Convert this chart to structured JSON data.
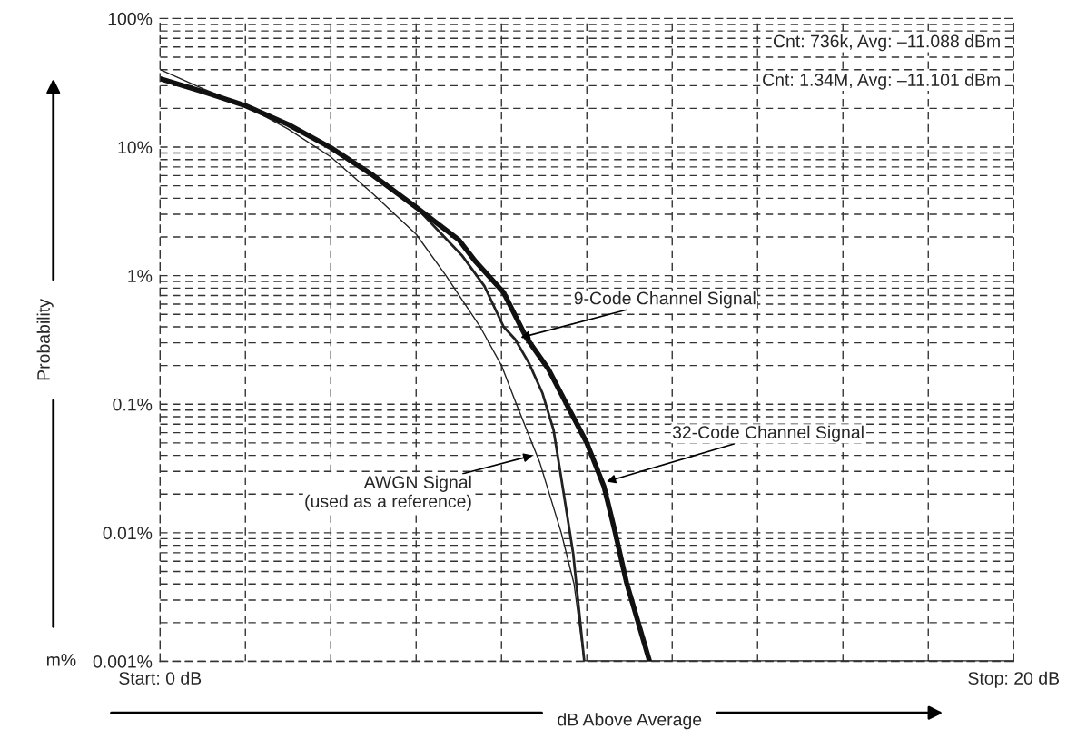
{
  "chart_data": {
    "type": "line",
    "xlabel": "dB Above Average",
    "ylabel": "Probability",
    "xlim": [
      0,
      20
    ],
    "xticks": [
      {
        "value": 0,
        "label": "Start: 0 dB"
      },
      {
        "value": 2,
        "label": null
      },
      {
        "value": 4,
        "label": null
      },
      {
        "value": 6,
        "label": null
      },
      {
        "value": 8,
        "label": null
      },
      {
        "value": 10,
        "label": null
      },
      {
        "value": 12,
        "label": null
      },
      {
        "value": 14,
        "label": null
      },
      {
        "value": 16,
        "label": null
      },
      {
        "value": 18,
        "label": null
      },
      {
        "value": 20,
        "label": "Stop: 20 dB"
      }
    ],
    "log": "y",
    "ylim": [
      0.001,
      100
    ],
    "yticks": [
      {
        "value": 0.001,
        "label": "0.001%"
      },
      {
        "value": 0.01,
        "label": "0.01%"
      },
      {
        "value": 0.1,
        "label": "0.1%"
      },
      {
        "value": 1,
        "label": "1%"
      },
      {
        "value": 10,
        "label": "10%"
      },
      {
        "value": 100,
        "label": "100%"
      }
    ],
    "grid": true,
    "line_style": "solid",
    "marker": "none",
    "series": [
      {
        "color": "#222222",
        "x": [
          0,
          1,
          2,
          3,
          4,
          5,
          6,
          6.7,
          7.5,
          8,
          8.35,
          8.9,
          9.4,
          9.7,
          9.94
        ],
        "values": [
          40,
          28.5,
          21,
          13.8,
          8.4,
          4.3,
          2.1,
          1.0,
          0.4,
          0.2,
          0.1,
          0.035,
          0.01,
          0.004,
          0.001
        ]
      },
      {
        "color": "#222222",
        "x": [
          0,
          1,
          2,
          3,
          4,
          5,
          6,
          7.07,
          7.6,
          8.05,
          8.32,
          8.64,
          8.96,
          9.22,
          9.45,
          9.68,
          9.94,
          20
        ],
        "values": [
          34,
          27,
          21,
          15,
          9.9,
          6,
          3.4,
          1.44,
          0.83,
          0.4,
          0.32,
          0.21,
          0.122,
          0.063,
          0.021,
          0.0069,
          0.001,
          0.001
        ]
      },
      {
        "color": "#111111",
        "x": [
          0,
          1,
          2,
          3,
          4,
          5,
          6,
          7,
          7.39,
          8.05,
          8.58,
          9.09,
          9.62,
          10.0,
          10.4,
          10.66,
          10.93,
          11.47
        ],
        "values": [
          34,
          27,
          21,
          15,
          9.9,
          6,
          3.4,
          1.9,
          1.29,
          0.74,
          0.33,
          0.19,
          0.087,
          0.05,
          0.023,
          0.0102,
          0.0041,
          0.001
        ]
      }
    ],
    "annotations": [
      "Cnt: 736k, Avg: –11.088 dBm",
      "Cnt: 1.34M, Avg: –11.101 dBm",
      "m%",
      {
        "text": "9-Code Channel Signal",
        "x": 8.45,
        "y": 0.33
      },
      {
        "text": "32-Code Channel Signal",
        "x": 10.46,
        "y": 0.025
      },
      {
        "text": "AWGN Signal\n(used as a reference)",
        "x": 8.73,
        "y": 0.04
      }
    ]
  }
}
